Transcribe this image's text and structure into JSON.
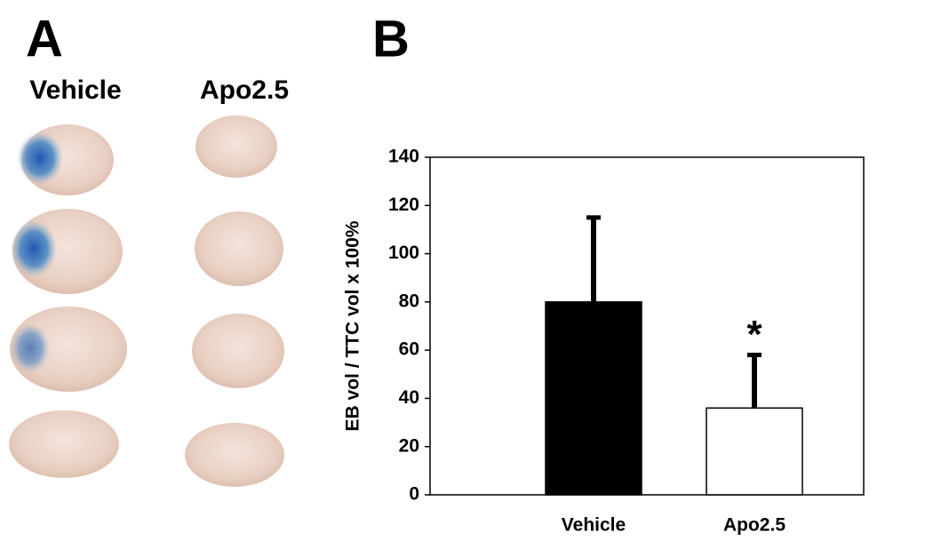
{
  "panel_a": {
    "label": "A",
    "columns": [
      "Vehicle",
      "Apo2.5"
    ]
  },
  "chart_data": {
    "type": "bar",
    "panel_label": "B",
    "ylabel": "EB vol / TTC vol x 100%",
    "categories": [
      "Vehicle",
      "Apo2.5"
    ],
    "values": [
      80,
      36
    ],
    "errors": [
      35,
      22
    ],
    "colors": [
      "#000000",
      "#ffffff"
    ],
    "annotation": "*",
    "ylim": [
      0,
      140
    ],
    "yticks": [
      0,
      20,
      40,
      60,
      80,
      100,
      120,
      140
    ]
  }
}
